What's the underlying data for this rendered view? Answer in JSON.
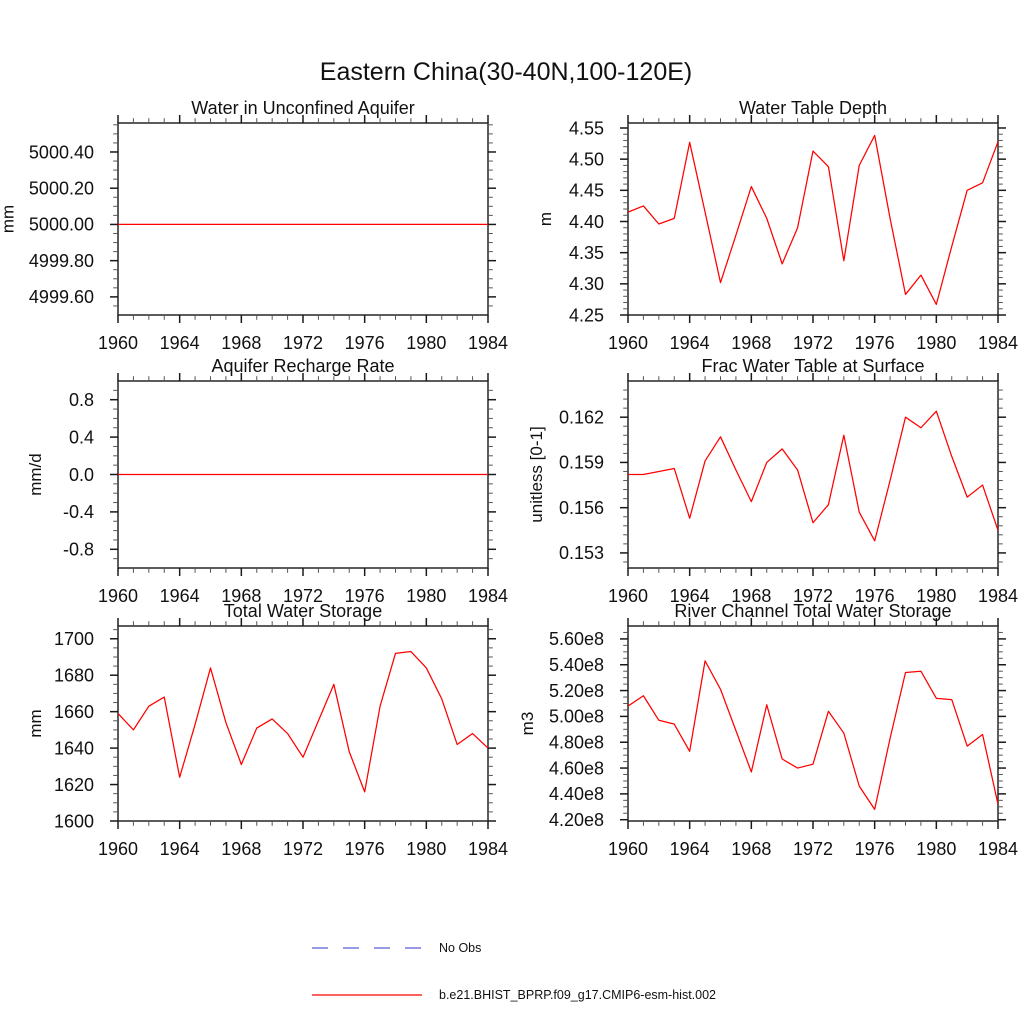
{
  "page": {
    "main_title": "Eastern China(30-40N,100-120E)"
  },
  "legend": {
    "items": [
      {
        "label": "No Obs",
        "color": "#7979dc",
        "line_style": "dashed"
      },
      {
        "label": "b.e21.BHIST_BPRP.f09_g17.CMIP6-esm-hist.002",
        "color": "#ff0000",
        "line_style": "solid"
      }
    ]
  },
  "chart_data": {
    "type": "line",
    "title": "Eastern China(30-40N,100-120E)",
    "x": [
      1960,
      1961,
      1962,
      1963,
      1964,
      1965,
      1966,
      1967,
      1968,
      1969,
      1970,
      1971,
      1972,
      1973,
      1974,
      1975,
      1976,
      1977,
      1978,
      1979,
      1980,
      1981,
      1982,
      1983,
      1984
    ],
    "series_name": "b.e21.BHIST_BPRP.f09_g17.CMIP6-esm-hist.002",
    "series_color": "#ff0000",
    "legend_position": "bottom",
    "grid": false,
    "panels": [
      {
        "title": "Water in Unconfined Aquifer",
        "ylabel": "mm",
        "xlim": [
          1960,
          1984
        ],
        "ylim": [
          4999.5,
          5000.56
        ],
        "yticks": {
          "values": [
            4999.6,
            4999.8,
            5000.0,
            5000.2,
            5000.4
          ],
          "labels": [
            "4999.60",
            "4999.80",
            "5000.00",
            "5000.20",
            "5000.40"
          ],
          "minor_step": 0.05
        },
        "xticks": {
          "values": [
            1960,
            1964,
            1968,
            1972,
            1976,
            1980,
            1984
          ],
          "labels": [
            "1960",
            "1964",
            "1968",
            "1972",
            "1976",
            "1980",
            "1984"
          ],
          "minor_step": 1
        },
        "values": [
          5000,
          5000,
          5000,
          5000,
          5000,
          5000,
          5000,
          5000,
          5000,
          5000,
          5000,
          5000,
          5000,
          5000,
          5000,
          5000,
          5000,
          5000,
          5000,
          5000,
          5000,
          5000,
          5000,
          5000,
          5000
        ]
      },
      {
        "title": "Water Table Depth",
        "ylabel": "m",
        "xlim": [
          1960,
          1984
        ],
        "ylim": [
          4.25,
          4.558
        ],
        "yticks": {
          "values": [
            4.25,
            4.3,
            4.35,
            4.4,
            4.45,
            4.5,
            4.55
          ],
          "labels": [
            "4.25",
            "4.30",
            "4.35",
            "4.40",
            "4.45",
            "4.50",
            "4.55"
          ],
          "minor_step": 0.01
        },
        "xticks": {
          "values": [
            1960,
            1964,
            1968,
            1972,
            1976,
            1980,
            1984
          ],
          "labels": [
            "1960",
            "1964",
            "1968",
            "1972",
            "1976",
            "1980",
            "1984"
          ],
          "minor_step": 1
        },
        "values": [
          4.415,
          4.425,
          4.396,
          4.405,
          4.527,
          4.415,
          4.302,
          4.378,
          4.456,
          4.405,
          4.332,
          4.39,
          4.513,
          4.488,
          4.337,
          4.49,
          4.538,
          4.405,
          4.283,
          4.314,
          4.267,
          4.36,
          4.45,
          4.462,
          4.528
        ]
      },
      {
        "title": "Aquifer Recharge Rate",
        "ylabel": "mm/d",
        "xlim": [
          1960,
          1984
        ],
        "ylim": [
          -1.0,
          1.0
        ],
        "yticks": {
          "values": [
            -0.8,
            -0.4,
            0.0,
            0.4,
            0.8
          ],
          "labels": [
            "-0.8",
            "-0.4",
            "0.0",
            "0.4",
            "0.8"
          ],
          "minor_step": 0.1
        },
        "xticks": {
          "values": [
            1960,
            1964,
            1968,
            1972,
            1976,
            1980,
            1984
          ],
          "labels": [
            "1960",
            "1964",
            "1968",
            "1972",
            "1976",
            "1980",
            "1984"
          ],
          "minor_step": 1
        },
        "values": [
          0,
          0,
          0,
          0,
          0,
          0,
          0,
          0,
          0,
          0,
          0,
          0,
          0,
          0,
          0,
          0,
          0,
          0,
          0,
          0,
          0,
          0,
          0,
          0,
          0
        ]
      },
      {
        "title": "Frac Water Table at Surface",
        "ylabel": "unitless [0-1]",
        "xlim": [
          1960,
          1984
        ],
        "ylim": [
          0.152,
          0.1644
        ],
        "yticks": {
          "values": [
            0.153,
            0.156,
            0.159,
            0.162
          ],
          "labels": [
            "0.153",
            "0.156",
            "0.159",
            "0.162"
          ],
          "minor_step": 0.0006
        },
        "xticks": {
          "values": [
            1960,
            1964,
            1968,
            1972,
            1976,
            1980,
            1984
          ],
          "labels": [
            "1960",
            "1964",
            "1968",
            "1972",
            "1976",
            "1980",
            "1984"
          ],
          "minor_step": 1
        },
        "values": [
          0.1582,
          0.1582,
          0.1584,
          0.1586,
          0.1553,
          0.1591,
          0.1607,
          0.1585,
          0.1564,
          0.159,
          0.1599,
          0.1585,
          0.155,
          0.1562,
          0.1608,
          0.1557,
          0.1538,
          0.1578,
          0.162,
          0.1613,
          0.1624,
          0.1594,
          0.1567,
          0.1575,
          0.1545
        ]
      },
      {
        "title": "Total Water Storage",
        "ylabel": "mm",
        "xlim": [
          1960,
          1984
        ],
        "ylim": [
          1600,
          1707
        ],
        "yticks": {
          "values": [
            1600,
            1620,
            1640,
            1660,
            1680,
            1700
          ],
          "labels": [
            "1600",
            "1620",
            "1640",
            "1660",
            "1680",
            "1700"
          ],
          "minor_step": 5
        },
        "xticks": {
          "values": [
            1960,
            1964,
            1968,
            1972,
            1976,
            1980,
            1984
          ],
          "labels": [
            "1960",
            "1964",
            "1968",
            "1972",
            "1976",
            "1980",
            "1984"
          ],
          "minor_step": 1
        },
        "values": [
          1659,
          1650,
          1663,
          1668,
          1624,
          1653,
          1684,
          1654,
          1631,
          1651,
          1656,
          1648,
          1635,
          1655,
          1675,
          1638,
          1616,
          1663,
          1692,
          1693,
          1684,
          1667,
          1642,
          1648,
          1640
        ]
      },
      {
        "title": "River Channel Total Water Storage",
        "ylabel": "m3",
        "xlim": [
          1960,
          1984
        ],
        "ylim": [
          419000000.0,
          570000000.0
        ],
        "yticks": {
          "values": [
            420000000.0,
            440000000.0,
            460000000.0,
            480000000.0,
            500000000.0,
            520000000.0,
            540000000.0,
            560000000.0
          ],
          "labels": [
            "4.20e8",
            "4.40e8",
            "4.60e8",
            "4.80e8",
            "5.00e8",
            "5.20e8",
            "5.40e8",
            "5.60e8"
          ],
          "minor_step": 5000000.0
        },
        "xticks": {
          "values": [
            1960,
            1964,
            1968,
            1972,
            1976,
            1980,
            1984
          ],
          "labels": [
            "1960",
            "1964",
            "1968",
            "1972",
            "1976",
            "1980",
            "1984"
          ],
          "minor_step": 1
        },
        "values": [
          508000000.0,
          516000000.0,
          497000000.0,
          494000000.0,
          473000000.0,
          543000000.0,
          521000000.0,
          489000000.0,
          457000000.0,
          509000000.0,
          467000000.0,
          460000000.0,
          463000000.0,
          504000000.0,
          487000000.0,
          446000000.0,
          428000000.0,
          483000000.0,
          534000000.0,
          535000000.0,
          514000000.0,
          513000000.0,
          477000000.0,
          486000000.0,
          432000000.0
        ]
      }
    ]
  }
}
